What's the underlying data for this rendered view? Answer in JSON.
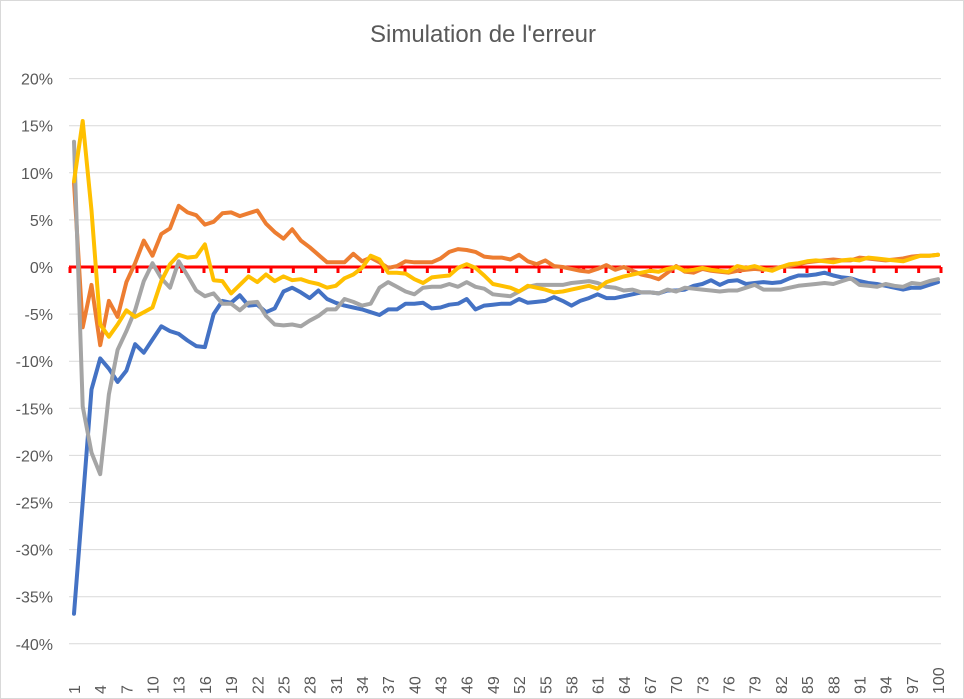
{
  "chart_data": {
    "type": "line",
    "title": "Simulation de l'erreur",
    "xlabel": "",
    "ylabel": "",
    "ylim": [
      -40,
      20
    ],
    "y_ticks": [
      "20%",
      "15%",
      "10%",
      "5%",
      "0%",
      "-5%",
      "-10%",
      "-15%",
      "-20%",
      "-25%",
      "-30%",
      "-35%",
      "-40%"
    ],
    "y_tick_values": [
      20,
      15,
      10,
      5,
      0,
      -5,
      -10,
      -15,
      -20,
      -25,
      -30,
      -35,
      -40
    ],
    "x_tick_labels": [
      "1",
      "4",
      "7",
      "10",
      "13",
      "16",
      "19",
      "22",
      "25",
      "28",
      "31",
      "34",
      "37",
      "40",
      "43",
      "46",
      "49",
      "52",
      "55",
      "58",
      "61",
      "64",
      "67",
      "70",
      "73",
      "76",
      "79",
      "82",
      "85",
      "88",
      "91",
      "94",
      "97",
      "100"
    ],
    "x_range": [
      1,
      100
    ],
    "grid": "horizontal",
    "zero_line_color": "#FF0000",
    "series": [
      {
        "color": "#4472C4",
        "values": [
          -36.8,
          -25,
          -13,
          -9.7,
          -10.8,
          -12.2,
          -11,
          -8.2,
          -9.1,
          -7.7,
          -6.3,
          -6.8,
          -7.1,
          -7.8,
          -8.4,
          -8.5,
          -5,
          -3.6,
          -3.8,
          -3,
          -4.1,
          -4,
          -4.8,
          -4.4,
          -2.6,
          -2.2,
          -2.7,
          -3.3,
          -2.5,
          -3.4,
          -3.8,
          -4.1,
          -4.3,
          -4.5,
          -4.8,
          -5.1,
          -4.5,
          -4.5,
          -3.9,
          -3.9,
          -3.8,
          -4.4,
          -4.3,
          -4,
          -3.9,
          -3.4,
          -4.5,
          -4.1,
          -4,
          -3.9,
          -3.9,
          -3.4,
          -3.8,
          -3.7,
          -3.6,
          -3.2,
          -3.6,
          -4.1,
          -3.6,
          -3.3,
          -2.9,
          -3.3,
          -3.3,
          -3.1,
          -2.9,
          -2.7,
          -2.7,
          -2.8,
          -2.5,
          -2.5,
          -2.4,
          -2,
          -1.8,
          -1.4,
          -1.9,
          -1.5,
          -1.4,
          -1.8,
          -1.7,
          -1.6,
          -1.7,
          -1.6,
          -1.2,
          -0.9,
          -0.9,
          -0.8,
          -0.6,
          -0.9,
          -1.1,
          -1.2,
          -1.5,
          -1.7,
          -1.8,
          -2,
          -2.2,
          -2.4,
          -2.2,
          -2.2,
          -1.9,
          -1.6
        ]
      },
      {
        "color": "#ED7D31",
        "values": [
          9,
          -6.4,
          -1.9,
          -8.3,
          -3.6,
          -5.3,
          -1.6,
          0.4,
          2.8,
          1.2,
          3.5,
          4.1,
          6.5,
          5.8,
          5.5,
          4.5,
          4.8,
          5.7,
          5.8,
          5.4,
          5.7,
          6,
          4.6,
          3.7,
          3,
          4,
          2.8,
          2.1,
          1.3,
          0.5,
          0.5,
          0.5,
          1.4,
          0.6,
          1,
          0.5,
          -0.1,
          0.1,
          0.6,
          0.5,
          0.5,
          0.5,
          0.9,
          1.6,
          1.9,
          1.8,
          1.6,
          1.1,
          1,
          1,
          0.8,
          1.3,
          0.6,
          0.3,
          0.7,
          0.1,
          0,
          -0.2,
          -0.4,
          -0.5,
          -0.2,
          0.2,
          -0.3,
          0,
          -0.4,
          -0.8,
          -1,
          -1.3,
          -0.6,
          0.1,
          -0.5,
          -0.6,
          -0.2,
          -0.4,
          -0.5,
          -0.6,
          -0.4,
          -0.3,
          -0.2,
          -0.3,
          -0.2,
          0,
          0.1,
          0.3,
          0.5,
          0.6,
          0.7,
          0.8,
          0.7,
          0.7,
          1,
          0.9,
          0.8,
          0.7,
          0.8,
          0.9,
          1.1,
          1.2,
          1.2,
          1.3
        ]
      },
      {
        "color": "#A5A5A5",
        "values": [
          13.3,
          -14.8,
          -19.7,
          -22,
          -13.5,
          -8.8,
          -6.8,
          -4.6,
          -1.5,
          0.4,
          -1.2,
          -2.2,
          0.6,
          -0.9,
          -2.5,
          -3.1,
          -2.8,
          -3.9,
          -3.9,
          -4.6,
          -3.8,
          -3.7,
          -5.2,
          -6.1,
          -6.2,
          -6.1,
          -6.3,
          -5.7,
          -5.2,
          -4.5,
          -4.5,
          -3.4,
          -3.7,
          -4.1,
          -3.9,
          -2.2,
          -1.6,
          -2.1,
          -2.6,
          -2.9,
          -2.2,
          -2.1,
          -2.1,
          -1.8,
          -2.1,
          -1.6,
          -2.1,
          -2.3,
          -2.9,
          -3,
          -3.1,
          -2.6,
          -2.1,
          -1.9,
          -1.9,
          -1.9,
          -1.9,
          -1.7,
          -1.6,
          -1.5,
          -1.7,
          -2.1,
          -2.2,
          -2.5,
          -2.4,
          -2.7,
          -2.7,
          -2.8,
          -2.4,
          -2.6,
          -2.2,
          -2.3,
          -2.4,
          -2.5,
          -2.6,
          -2.5,
          -2.5,
          -2.2,
          -1.9,
          -2.4,
          -2.4,
          -2.4,
          -2.2,
          -2,
          -1.9,
          -1.8,
          -1.7,
          -1.8,
          -1.5,
          -1.2,
          -1.9,
          -2,
          -2.1,
          -1.8,
          -2,
          -2.1,
          -1.7,
          -1.8,
          -1.5,
          -1.3
        ]
      },
      {
        "color": "#FFC000",
        "values": [
          9.1,
          15.5,
          6,
          -6.1,
          -7.4,
          -6.1,
          -4.6,
          -5.3,
          -4.8,
          -4.3,
          -1.5,
          0.3,
          1.3,
          1,
          1.1,
          2.4,
          -1.4,
          -1.5,
          -2.8,
          -1.9,
          -1,
          -1.6,
          -0.8,
          -1.5,
          -1,
          -1.4,
          -1.3,
          -1.6,
          -1.8,
          -2.2,
          -2,
          -1.2,
          -0.8,
          -0.1,
          1.2,
          0.8,
          -0.6,
          -0.6,
          -0.7,
          -1.3,
          -1.7,
          -1.1,
          -1,
          -0.9,
          -0.1,
          0.3,
          -0.1,
          -0.9,
          -1.8,
          -2,
          -2.2,
          -2.6,
          -2,
          -2.2,
          -2.4,
          -2.7,
          -2.6,
          -2.4,
          -2.2,
          -2,
          -2.3,
          -1.6,
          -1.3,
          -1,
          -0.8,
          -0.6,
          -0.4,
          -0.5,
          -0.2,
          0,
          -0.4,
          -0.3,
          -0.1,
          -0.3,
          -0.4,
          -0.5,
          0.1,
          -0.1,
          0.1,
          -0.2,
          -0.4,
          0,
          0.3,
          0.4,
          0.6,
          0.7,
          0.6,
          0.5,
          0.7,
          0.8,
          0.7,
          1,
          0.9,
          0.8,
          0.7,
          0.6,
          0.9,
          1.2,
          1.2,
          1.3
        ]
      }
    ]
  }
}
